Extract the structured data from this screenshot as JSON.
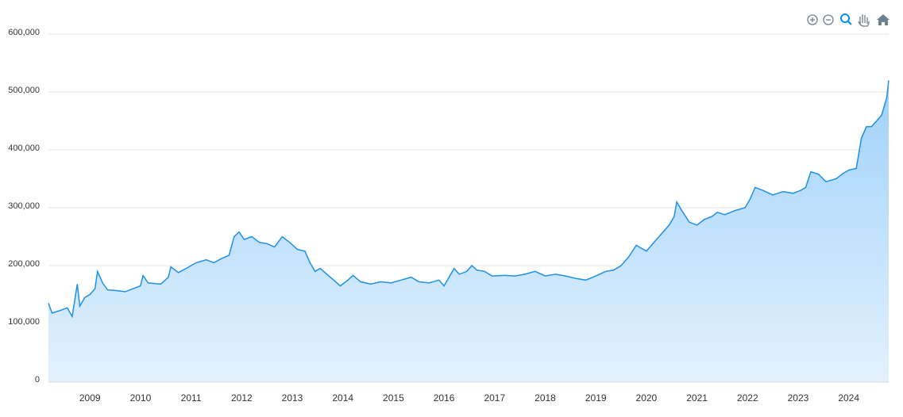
{
  "chart_data": {
    "type": "area",
    "x": [
      2008.18,
      2008.25,
      2008.4,
      2008.55,
      2008.65,
      2008.75,
      2008.8,
      2008.9,
      2009.0,
      2009.1,
      2009.15,
      2009.25,
      2009.35,
      2009.5,
      2009.7,
      2009.85,
      2010.0,
      2010.05,
      2010.15,
      2010.4,
      2010.55,
      2010.6,
      2010.75,
      2010.9,
      2011.1,
      2011.3,
      2011.45,
      2011.6,
      2011.75,
      2011.85,
      2011.95,
      2012.05,
      2012.2,
      2012.35,
      2012.5,
      2012.65,
      2012.8,
      2012.95,
      2013.1,
      2013.25,
      2013.35,
      2013.45,
      2013.55,
      2013.75,
      2013.95,
      2014.1,
      2014.2,
      2014.35,
      2014.55,
      2014.75,
      2014.95,
      2015.15,
      2015.35,
      2015.5,
      2015.7,
      2015.9,
      2016.0,
      2016.1,
      2016.2,
      2016.3,
      2016.45,
      2016.55,
      2016.65,
      2016.8,
      2016.95,
      2017.2,
      2017.4,
      2017.6,
      2017.8,
      2018.0,
      2018.2,
      2018.4,
      2018.6,
      2018.8,
      2019.0,
      2019.2,
      2019.35,
      2019.5,
      2019.65,
      2019.8,
      2020.0,
      2020.15,
      2020.3,
      2020.45,
      2020.55,
      2020.6,
      2020.7,
      2020.85,
      2021.0,
      2021.15,
      2021.3,
      2021.4,
      2021.55,
      2021.75,
      2021.95,
      2022.05,
      2022.15,
      2022.3,
      2022.5,
      2022.7,
      2022.9,
      2023.05,
      2023.15,
      2023.25,
      2023.4,
      2023.55,
      2023.75,
      2023.9,
      2024.0,
      2024.15,
      2024.25,
      2024.35,
      2024.45,
      2024.55,
      2024.65,
      2024.75,
      2024.79
    ],
    "values": [
      135000,
      118000,
      122000,
      127000,
      112000,
      168000,
      130000,
      145000,
      150000,
      160000,
      190000,
      170000,
      158000,
      157000,
      155000,
      160000,
      165000,
      183000,
      170000,
      168000,
      180000,
      198000,
      188000,
      195000,
      205000,
      210000,
      205000,
      212000,
      218000,
      250000,
      258000,
      245000,
      250000,
      240000,
      238000,
      232000,
      250000,
      240000,
      228000,
      225000,
      205000,
      190000,
      195000,
      180000,
      165000,
      175000,
      183000,
      172000,
      168000,
      172000,
      170000,
      175000,
      180000,
      172000,
      170000,
      175000,
      165000,
      180000,
      195000,
      185000,
      190000,
      200000,
      192000,
      190000,
      182000,
      183000,
      182000,
      185000,
      190000,
      182000,
      185000,
      182000,
      178000,
      175000,
      182000,
      190000,
      192000,
      200000,
      215000,
      235000,
      225000,
      240000,
      255000,
      270000,
      285000,
      310000,
      295000,
      275000,
      270000,
      280000,
      285000,
      292000,
      288000,
      295000,
      300000,
      315000,
      335000,
      330000,
      322000,
      328000,
      325000,
      330000,
      335000,
      362000,
      358000,
      345000,
      350000,
      360000,
      365000,
      368000,
      420000,
      440000,
      440000,
      450000,
      460000,
      490000,
      520000
    ],
    "color": "#1e90e8",
    "xlim": [
      2008.18,
      2024.79
    ],
    "xticks": [
      2009,
      2010,
      2011,
      2012,
      2013,
      2014,
      2015,
      2016,
      2017,
      2018,
      2019,
      2020,
      2021,
      2022,
      2023,
      2024
    ],
    "ylim": [
      0,
      600000
    ],
    "yticks": [
      0,
      {
        "value": 100000,
        "label": "100,000"
      },
      {
        "value": 200000,
        "label": "200,000"
      },
      {
        "value": 300000,
        "label": "300,000"
      },
      {
        "value": 400000,
        "label": "400,000"
      },
      {
        "value": 500000,
        "label": "500,000"
      },
      {
        "value": 600000,
        "label": "600,000"
      }
    ],
    "grid": true
  }
}
